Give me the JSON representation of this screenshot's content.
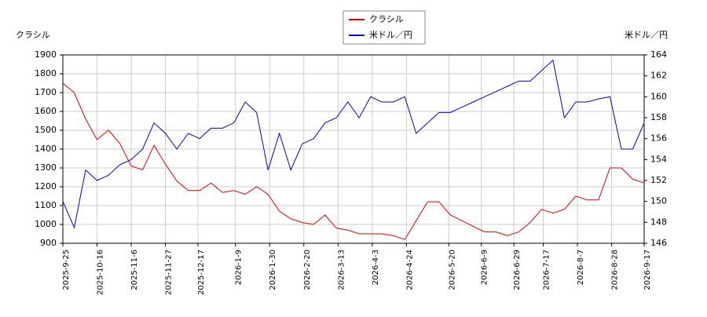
{
  "chart_data": {
    "type": "line",
    "y_label": "クラシル",
    "y2_label": "米ドル／円",
    "x": [
      "2025-9-25",
      "2025-10-2",
      "2025-10-9",
      "2025-10-16",
      "2025-10-23",
      "2025-10-30",
      "2025-11-6",
      "2025-11-13",
      "2025-11-20",
      "2025-11-27",
      "2025-12-4",
      "2025-12-11",
      "2025-12-18",
      "2025-12-25",
      "2026-1-1",
      "2026-1-8",
      "2026-1-15",
      "2026-1-22",
      "2026-1-29",
      "2026-2-5",
      "2026-2-12",
      "2026-2-19",
      "2026-2-26",
      "2026-3-5",
      "2026-3-12",
      "2026-3-19",
      "2026-3-26",
      "2026-4-2",
      "2026-4-9",
      "2026-4-16",
      "2026-4-23",
      "2026-4-30",
      "2026-5-7",
      "2026-5-14",
      "2026-5-21",
      "2026-5-28",
      "2026-6-4",
      "2026-6-11",
      "2026-6-18",
      "2026-6-25",
      "2026-7-2",
      "2026-7-9",
      "2026-7-16",
      "2026-7-23",
      "2026-7-30",
      "2026-8-6",
      "2026-8-13",
      "2026-8-20",
      "2026-8-27",
      "2026-9-3",
      "2026-9-10",
      "2026-9-17"
    ],
    "series": [
      {
        "name": "クラシル",
        "color": "#dd0000",
        "values": [
          1750,
          1700,
          1560,
          1450,
          1500,
          1430,
          1310,
          1290,
          1420,
          1320,
          1230,
          1180,
          1180,
          1220,
          1170,
          1180,
          1160,
          1200,
          1160,
          1070,
          1030,
          1010,
          1000,
          1050,
          980,
          970,
          950,
          950,
          950,
          940,
          920,
          1020,
          1120,
          1120,
          1050,
          1020,
          990,
          960,
          960,
          940,
          960,
          1010,
          1080,
          1060,
          1080,
          1150,
          1130,
          1130,
          1300,
          1300,
          1240,
          1220
        ]
      },
      {
        "name": "米ドル／円",
        "color": "#0000cc",
        "axis": "y2",
        "values": [
          150,
          147.5,
          153,
          152,
          152.5,
          153.5,
          154,
          155,
          157.5,
          156.5,
          155,
          156.5,
          156,
          157,
          157,
          157.5,
          159.5,
          158.5,
          153,
          156.5,
          153,
          155.5,
          156,
          157.5,
          158,
          159.5,
          158,
          160,
          159.5,
          159.5,
          160,
          156.5,
          157.5,
          158.5,
          158.5,
          159,
          159.5,
          160,
          160.5,
          161,
          161.5,
          161.5,
          162.5,
          163.5,
          158,
          159.5,
          159.5,
          159.8,
          160,
          155,
          155,
          157.5
        ]
      }
    ],
    "xticks": [
      "2025-9-25",
      "2025-10-16",
      "2025-11-6",
      "2025-11-27",
      "2025-12-17",
      "2026-1-9",
      "2026-1-30",
      "2026-2-20",
      "2026-3-13",
      "2026-4-3",
      "2026-4-24",
      "2026-5-20",
      "2026-6-9",
      "2026-6-29",
      "2026-7-17",
      "2026-8-7",
      "2026-8-28",
      "2026-9-17"
    ],
    "ylim": [
      900,
      1900
    ],
    "yticks": [
      900,
      1000,
      1100,
      1200,
      1300,
      1400,
      1500,
      1600,
      1700,
      1800,
      1900
    ],
    "y2lim": [
      146,
      164
    ],
    "y2ticks": [
      146,
      148,
      150,
      152,
      154,
      156,
      158,
      160,
      162,
      164
    ],
    "grid": true
  }
}
